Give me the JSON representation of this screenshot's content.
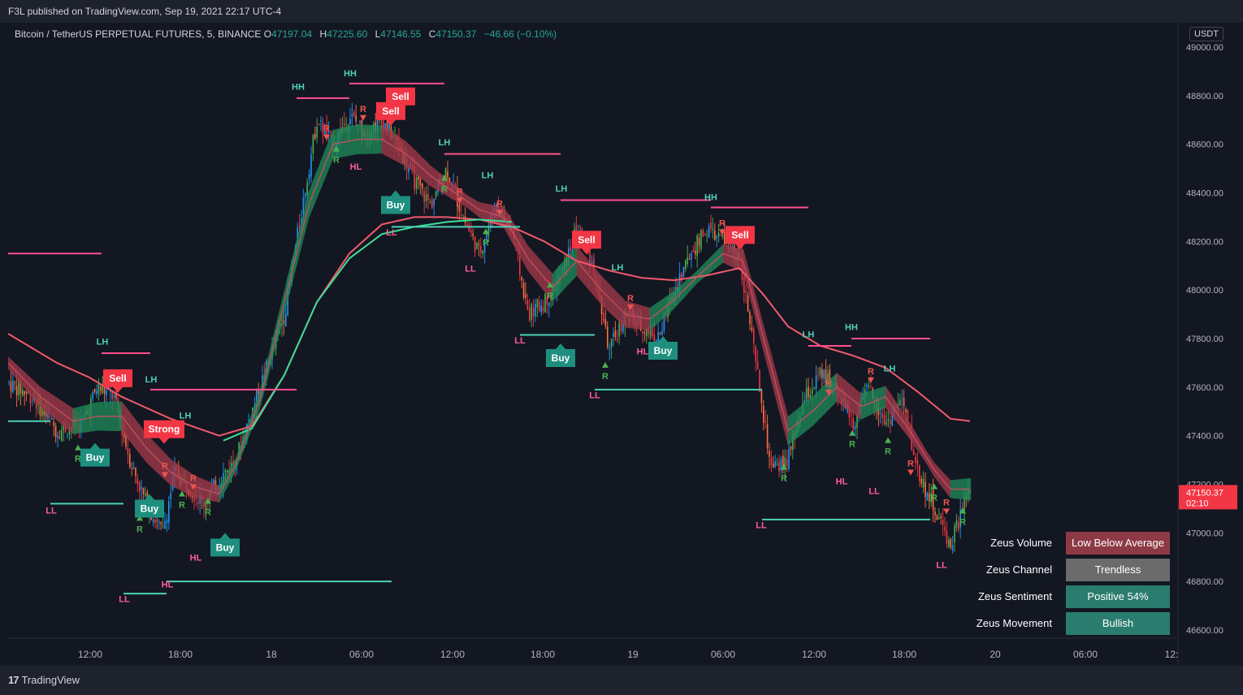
{
  "header": {
    "published": "F3L published on TradingView.com, Sep 19, 2021 22:17 UTC-4"
  },
  "symbol": {
    "name": "Bitcoin / TetherUS PERPETUAL FUTURES, 5, BINANCE",
    "open_label": "O",
    "open": "47197.04",
    "high_label": "H",
    "high": "47225.60",
    "low_label": "L",
    "low": "47146.55",
    "close_label": "C",
    "close": "47150.37",
    "change": "−46.66 (−0.10%)"
  },
  "price_scale": {
    "currency": "USDT",
    "current_price": "47150.37",
    "countdown": "02:10"
  },
  "footer": {
    "brand": "TradingView"
  },
  "colors": {
    "background": "#131722",
    "up": "#26a69a",
    "down": "#ef5350",
    "bull_candle": "#4caf50",
    "bear_candle": "#f23645",
    "slow_ma": "#f05a6b",
    "fast_ma": "#3ddc97",
    "resistance": "#ff4f8b",
    "support": "#4dd0b8"
  },
  "zeus_table": [
    {
      "label": "Zeus Volume",
      "value": "Low Below Average",
      "color": "#8e3a46"
    },
    {
      "label": "Zeus Channel",
      "value": "Trendless",
      "color": "#6b6b6b"
    },
    {
      "label": "Zeus Sentiment",
      "value": "Positive 54%",
      "color": "#2a7d6e"
    },
    {
      "label": "Zeus Movement",
      "value": "Bullish",
      "color": "#2a7d6e"
    }
  ],
  "chart_data": {
    "type": "candlestick",
    "title": "Bitcoin / TetherUS PERPETUAL FUTURES, 5, BINANCE",
    "xlabel": "",
    "ylabel": "",
    "ylim": [
      46500,
      49100
    ],
    "y_ticks": [
      "49000.00",
      "48800.00",
      "48600.00",
      "48400.00",
      "48200.00",
      "48000.00",
      "47800.00",
      "47600.00",
      "47400.00",
      "47200.00",
      "47000.00",
      "46800.00",
      "46600.00"
    ],
    "x_ticks": [
      "12:00",
      "18:00",
      "18",
      "06:00",
      "12:00",
      "18:00",
      "19",
      "06:00",
      "12:00",
      "18:00",
      "20",
      "06:00",
      "12:"
    ],
    "time_range": [
      "2021-09-17 09:00",
      "2021-09-20 12:00"
    ],
    "price_path": [
      [
        0,
        47620
      ],
      [
        30,
        47560
      ],
      [
        60,
        47420
      ],
      [
        90,
        47450
      ],
      [
        110,
        47600
      ],
      [
        130,
        47560
      ],
      [
        150,
        47300
      ],
      [
        170,
        47120
      ],
      [
        190,
        47000
      ],
      [
        205,
        47250
      ],
      [
        220,
        47200
      ],
      [
        240,
        47120
      ],
      [
        260,
        47220
      ],
      [
        280,
        47300
      ],
      [
        300,
        47500
      ],
      [
        320,
        47700
      ],
      [
        340,
        47900
      ],
      [
        360,
        48300
      ],
      [
        380,
        48700
      ],
      [
        400,
        48600
      ],
      [
        420,
        48720
      ],
      [
        440,
        48650
      ],
      [
        460,
        48700
      ],
      [
        480,
        48600
      ],
      [
        500,
        48450
      ],
      [
        520,
        48350
      ],
      [
        540,
        48500
      ],
      [
        560,
        48300
      ],
      [
        580,
        48150
      ],
      [
        600,
        48350
      ],
      [
        620,
        48250
      ],
      [
        640,
        47900
      ],
      [
        660,
        47950
      ],
      [
        680,
        48050
      ],
      [
        700,
        48250
      ],
      [
        720,
        48100
      ],
      [
        740,
        47750
      ],
      [
        760,
        47900
      ],
      [
        780,
        47850
      ],
      [
        800,
        47800
      ],
      [
        820,
        48000
      ],
      [
        840,
        48150
      ],
      [
        860,
        48250
      ],
      [
        880,
        48200
      ],
      [
        900,
        48150
      ],
      [
        920,
        47700
      ],
      [
        940,
        47250
      ],
      [
        960,
        47300
      ],
      [
        980,
        47550
      ],
      [
        1000,
        47650
      ],
      [
        1020,
        47600
      ],
      [
        1040,
        47450
      ],
      [
        1060,
        47600
      ],
      [
        1080,
        47450
      ],
      [
        1100,
        47550
      ],
      [
        1120,
        47250
      ],
      [
        1140,
        47100
      ],
      [
        1160,
        46950
      ],
      [
        1180,
        47150
      ]
    ],
    "series": [
      {
        "name": "",
        "kind": "slow_ma",
        "points": [
          [
            0,
            47820
          ],
          [
            60,
            47700
          ],
          [
            100,
            47640
          ],
          [
            140,
            47560
          ],
          [
            200,
            47470
          ],
          [
            260,
            47400
          ],
          [
            300,
            47440
          ],
          [
            340,
            47650
          ],
          [
            380,
            47950
          ],
          [
            420,
            48150
          ],
          [
            460,
            48270
          ],
          [
            500,
            48300
          ],
          [
            540,
            48300
          ],
          [
            580,
            48290
          ],
          [
            620,
            48260
          ],
          [
            660,
            48200
          ],
          [
            700,
            48120
          ],
          [
            740,
            48080
          ],
          [
            780,
            48050
          ],
          [
            820,
            48040
          ],
          [
            860,
            48060
          ],
          [
            900,
            48090
          ],
          [
            930,
            47980
          ],
          [
            960,
            47850
          ],
          [
            1000,
            47770
          ],
          [
            1040,
            47730
          ],
          [
            1080,
            47680
          ],
          [
            1120,
            47580
          ],
          [
            1160,
            47470
          ],
          [
            1185,
            47460
          ]
        ]
      },
      {
        "name": "",
        "kind": "fast_ma",
        "points": [
          [
            0,
            47700
          ],
          [
            40,
            47560
          ],
          [
            80,
            47460
          ],
          [
            110,
            47480
          ],
          [
            140,
            47480
          ],
          [
            170,
            47350
          ],
          [
            200,
            47250
          ],
          [
            230,
            47190
          ],
          [
            260,
            47160
          ],
          [
            280,
            47280
          ],
          [
            310,
            47550
          ],
          [
            340,
            47950
          ],
          [
            370,
            48350
          ],
          [
            400,
            48600
          ],
          [
            430,
            48620
          ],
          [
            460,
            48620
          ],
          [
            490,
            48560
          ],
          [
            520,
            48470
          ],
          [
            550,
            48400
          ],
          [
            580,
            48330
          ],
          [
            610,
            48300
          ],
          [
            640,
            48130
          ],
          [
            670,
            48010
          ],
          [
            700,
            48120
          ],
          [
            730,
            48000
          ],
          [
            760,
            47900
          ],
          [
            790,
            47880
          ],
          [
            820,
            47960
          ],
          [
            850,
            48060
          ],
          [
            880,
            48150
          ],
          [
            905,
            48120
          ],
          [
            930,
            47800
          ],
          [
            960,
            47420
          ],
          [
            990,
            47500
          ],
          [
            1020,
            47600
          ],
          [
            1050,
            47520
          ],
          [
            1080,
            47560
          ],
          [
            1110,
            47420
          ],
          [
            1140,
            47260
          ],
          [
            1160,
            47180
          ],
          [
            1185,
            47180
          ]
        ]
      }
    ],
    "levels": [
      {
        "kind": "resistance",
        "price": 48150,
        "from": 0,
        "to": 115
      },
      {
        "kind": "resistance",
        "price": 47740,
        "from": 115,
        "to": 175
      },
      {
        "kind": "resistance",
        "price": 47590,
        "from": 175,
        "to": 355
      },
      {
        "kind": "resistance",
        "price": 48790,
        "from": 355,
        "to": 420
      },
      {
        "kind": "resistance",
        "price": 48850,
        "from": 420,
        "to": 537
      },
      {
        "kind": "resistance",
        "price": 48560,
        "from": 537,
        "to": 680
      },
      {
        "kind": "resistance",
        "price": 48370,
        "from": 680,
        "to": 865
      },
      {
        "kind": "resistance",
        "price": 48340,
        "from": 865,
        "to": 985
      },
      {
        "kind": "resistance",
        "price": 47770,
        "from": 985,
        "to": 1038
      },
      {
        "kind": "resistance",
        "price": 47800,
        "from": 1038,
        "to": 1135
      },
      {
        "kind": "support",
        "price": 47460,
        "from": 0,
        "to": 52
      },
      {
        "kind": "support",
        "price": 47120,
        "from": 52,
        "to": 142
      },
      {
        "kind": "support",
        "price": 46750,
        "from": 142,
        "to": 195
      },
      {
        "kind": "support",
        "price": 46800,
        "from": 195,
        "to": 472
      },
      {
        "kind": "support",
        "price": 48260,
        "from": 472,
        "to": 630
      },
      {
        "kind": "support",
        "price": 47815,
        "from": 630,
        "to": 722
      },
      {
        "kind": "support",
        "price": 47590,
        "from": 722,
        "to": 928
      },
      {
        "kind": "support",
        "price": 47055,
        "from": 928,
        "to": 1135
      }
    ],
    "swing_labels": [
      {
        "text": "LH",
        "x": 116,
        "price": 47775,
        "kind": "high"
      },
      {
        "text": "LL",
        "x": 53,
        "price": 47080,
        "kind": "low"
      },
      {
        "text": "LL",
        "x": 143,
        "price": 46715,
        "kind": "low"
      },
      {
        "text": "LH",
        "x": 176,
        "price": 47620,
        "kind": "high"
      },
      {
        "text": "HL",
        "x": 196,
        "price": 46775,
        "kind": "low"
      },
      {
        "text": "LH",
        "x": 218,
        "price": 47470,
        "kind": "high"
      },
      {
        "text": "HL",
        "x": 231,
        "price": 46885,
        "kind": "low"
      },
      {
        "text": "HH",
        "x": 357,
        "price": 48825,
        "kind": "high"
      },
      {
        "text": "HH",
        "x": 421,
        "price": 48880,
        "kind": "high"
      },
      {
        "text": "HL",
        "x": 428,
        "price": 48495,
        "kind": "low"
      },
      {
        "text": "LL",
        "x": 472,
        "price": 48225,
        "kind": "low"
      },
      {
        "text": "LH",
        "x": 537,
        "price": 48595,
        "kind": "high"
      },
      {
        "text": "LH",
        "x": 590,
        "price": 48460,
        "kind": "high"
      },
      {
        "text": "LL",
        "x": 569,
        "price": 48075,
        "kind": "low"
      },
      {
        "text": "LH",
        "x": 681,
        "price": 48405,
        "kind": "high"
      },
      {
        "text": "LL",
        "x": 630,
        "price": 47780,
        "kind": "low"
      },
      {
        "text": "LH",
        "x": 750,
        "price": 48080,
        "kind": "high"
      },
      {
        "text": "LL",
        "x": 722,
        "price": 47555,
        "kind": "low"
      },
      {
        "text": "HL",
        "x": 781,
        "price": 47735,
        "kind": "low"
      },
      {
        "text": "HH",
        "x": 865,
        "price": 48370,
        "kind": "high"
      },
      {
        "text": "LH",
        "x": 985,
        "price": 47805,
        "kind": "high"
      },
      {
        "text": "LL",
        "x": 927,
        "price": 47020,
        "kind": "low"
      },
      {
        "text": "HH",
        "x": 1038,
        "price": 47835,
        "kind": "high"
      },
      {
        "text": "LH",
        "x": 1085,
        "price": 47665,
        "kind": "high"
      },
      {
        "text": "HL",
        "x": 1026,
        "price": 47200,
        "kind": "low"
      },
      {
        "text": "LL",
        "x": 1066,
        "price": 47160,
        "kind": "low"
      },
      {
        "text": "LL",
        "x": 1149,
        "price": 46855,
        "kind": "low"
      }
    ],
    "signals": [
      {
        "text": "Sell",
        "x": 135,
        "price": 47600,
        "kind": "sell"
      },
      {
        "text": "Strong",
        "x": 192,
        "price": 47390,
        "kind": "sell"
      },
      {
        "text": "Buy",
        "x": 107,
        "price": 47370,
        "kind": "buy"
      },
      {
        "text": "Buy",
        "x": 174,
        "price": 47160,
        "kind": "buy"
      },
      {
        "text": "Buy",
        "x": 267,
        "price": 47000,
        "kind": "buy"
      },
      {
        "text": "Sell",
        "x": 483,
        "price": 48760,
        "kind": "sell"
      },
      {
        "text": "Sell",
        "x": 471,
        "price": 48700,
        "kind": "sell"
      },
      {
        "text": "Buy",
        "x": 477,
        "price": 48410,
        "kind": "buy"
      },
      {
        "text": "Sell",
        "x": 712,
        "price": 48170,
        "kind": "sell"
      },
      {
        "text": "Buy",
        "x": 680,
        "price": 47780,
        "kind": "buy"
      },
      {
        "text": "Buy",
        "x": 806,
        "price": 47810,
        "kind": "buy"
      },
      {
        "text": "Sell",
        "x": 901,
        "price": 48190,
        "kind": "sell"
      }
    ],
    "r_markers": [
      {
        "x": 86,
        "price": 47340,
        "dir": "up"
      },
      {
        "x": 162,
        "price": 47050,
        "dir": "up"
      },
      {
        "x": 193,
        "price": 47250,
        "dir": "down"
      },
      {
        "x": 228,
        "price": 47200,
        "dir": "down"
      },
      {
        "x": 214,
        "price": 47150,
        "dir": "up"
      },
      {
        "x": 246,
        "price": 47120,
        "dir": "up"
      },
      {
        "x": 392,
        "price": 48640,
        "dir": "down"
      },
      {
        "x": 404,
        "price": 48570,
        "dir": "up"
      },
      {
        "x": 437,
        "price": 48720,
        "dir": "down"
      },
      {
        "x": 537,
        "price": 48450,
        "dir": "up"
      },
      {
        "x": 556,
        "price": 48380,
        "dir": "down"
      },
      {
        "x": 588,
        "price": 48230,
        "dir": "up"
      },
      {
        "x": 605,
        "price": 48330,
        "dir": "down"
      },
      {
        "x": 667,
        "price": 48010,
        "dir": "up"
      },
      {
        "x": 735,
        "price": 47680,
        "dir": "up"
      },
      {
        "x": 766,
        "price": 47940,
        "dir": "down"
      },
      {
        "x": 879,
        "price": 48250,
        "dir": "down"
      },
      {
        "x": 955,
        "price": 47260,
        "dir": "up"
      },
      {
        "x": 1010,
        "price": 47590,
        "dir": "down"
      },
      {
        "x": 1039,
        "price": 47400,
        "dir": "up"
      },
      {
        "x": 1062,
        "price": 47640,
        "dir": "down"
      },
      {
        "x": 1083,
        "price": 47370,
        "dir": "up"
      },
      {
        "x": 1111,
        "price": 47260,
        "dir": "down"
      },
      {
        "x": 1140,
        "price": 47180,
        "dir": "up"
      },
      {
        "x": 1155,
        "price": 47100,
        "dir": "down"
      },
      {
        "x": 1175,
        "price": 47080,
        "dir": "up"
      }
    ]
  }
}
